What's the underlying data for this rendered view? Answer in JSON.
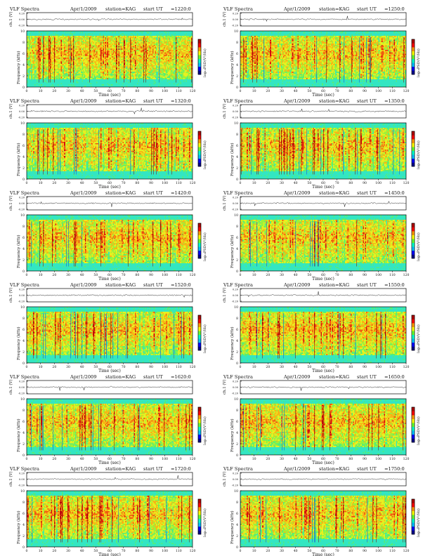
{
  "page": {
    "background": "#ffffff"
  },
  "colorbar_colors": [
    "#00008b",
    "#0000ff",
    "#00bfff",
    "#00ffcc",
    "#66ff33",
    "#ffff00",
    "#ff9900",
    "#ff0000",
    "#b00000"
  ],
  "panel_defaults": {
    "title": "VLF Spectra",
    "date": "Apr/1/2009",
    "station": "station=KAG",
    "start_label": "start  UT",
    "ch_label": "ch.1 (V)",
    "ch_ticks": [
      "0.20",
      "0.00",
      "-0.20"
    ],
    "ch_ylim": [
      -0.2,
      0.2
    ],
    "freq_label": "Frequency  (kHz)",
    "freq_ticks": [
      0,
      2,
      4,
      6,
      8,
      10
    ],
    "freq_ylim": [
      0,
      10
    ],
    "time_label": "Time  (sec)",
    "time_ticks": [
      0,
      10,
      20,
      30,
      40,
      50,
      60,
      70,
      80,
      90,
      100,
      110,
      120
    ],
    "time_xlim": [
      0,
      120
    ],
    "colorbar_label": "log₁₀PSD(V²/Hz)"
  },
  "chart_data": [
    {
      "type": "heatmap",
      "title": "VLF Spectra",
      "date": "Apr/1/2009",
      "station": "station=KAG",
      "start_time": "=1220:0",
      "xlabel": "Time  (sec)",
      "ylabel": "Frequency  (kHz)",
      "xlim": [
        0,
        120
      ],
      "ylim": [
        0,
        10
      ]
    },
    {
      "type": "heatmap",
      "title": "VLF Spectra",
      "date": "Apr/1/2009",
      "station": "station=KAG",
      "start_time": "=1250:0",
      "xlabel": "Time  (sec)",
      "ylabel": "Frequency  (kHz)",
      "xlim": [
        0,
        120
      ],
      "ylim": [
        0,
        10
      ]
    },
    {
      "type": "heatmap",
      "title": "VLF Spectra",
      "date": "Apr/1/2009",
      "station": "station=KAG",
      "start_time": "=1320:0",
      "xlabel": "Time  (sec)",
      "ylabel": "Frequency  (kHz)",
      "xlim": [
        0,
        120
      ],
      "ylim": [
        0,
        10
      ]
    },
    {
      "type": "heatmap",
      "title": "VLF Spectra",
      "date": "Apr/1/2009",
      "station": "station=KAG",
      "start_time": "=1350:0",
      "xlabel": "Time  (sec)",
      "ylabel": "Frequency  (kHz)",
      "xlim": [
        0,
        120
      ],
      "ylim": [
        0,
        10
      ]
    },
    {
      "type": "heatmap",
      "title": "VLF Spectra",
      "date": "Apr/1/2009",
      "station": "station=KAG",
      "start_time": "=1420:0",
      "xlabel": "Time  (sec)",
      "ylabel": "Frequency  (kHz)",
      "xlim": [
        0,
        120
      ],
      "ylim": [
        0,
        10
      ]
    },
    {
      "type": "heatmap",
      "title": "VLF Spectra",
      "date": "Apr/1/2009",
      "station": "station=KAG",
      "start_time": "=1450:0",
      "xlabel": "Time  (sec)",
      "ylabel": "Frequency  (kHz)",
      "xlim": [
        0,
        120
      ],
      "ylim": [
        0,
        10
      ]
    },
    {
      "type": "heatmap",
      "title": "VLF Spectra",
      "date": "Apr/1/2009",
      "station": "station=KAG",
      "start_time": "=1520:0",
      "xlabel": "Time  (sec)",
      "ylabel": "Frequency  (kHz)",
      "xlim": [
        0,
        120
      ],
      "ylim": [
        0,
        10
      ]
    },
    {
      "type": "heatmap",
      "title": "VLF Spectra",
      "date": "Apr/1/2009",
      "station": "station=KAG",
      "start_time": "=1550:0",
      "xlabel": "Time  (sec)",
      "ylabel": "Frequency  (kHz)",
      "xlim": [
        0,
        120
      ],
      "ylim": [
        0,
        10
      ]
    },
    {
      "type": "heatmap",
      "title": "VLF Spectra",
      "date": "Apr/1/2009",
      "station": "station=KAG",
      "start_time": "=1620:0",
      "xlabel": "Time  (sec)",
      "ylabel": "Frequency  (kHz)",
      "xlim": [
        0,
        120
      ],
      "ylim": [
        0,
        10
      ]
    },
    {
      "type": "heatmap",
      "title": "VLF Spectra",
      "date": "Apr/1/2009",
      "station": "station=KAG",
      "start_time": "=1650:0",
      "xlabel": "Time  (sec)",
      "ylabel": "Frequency  (kHz)",
      "xlim": [
        0,
        120
      ],
      "ylim": [
        0,
        10
      ]
    },
    {
      "type": "heatmap",
      "title": "VLF Spectra",
      "date": "Apr/1/2009",
      "station": "station=KAG",
      "start_time": "=1720:0",
      "xlabel": "Time  (sec)",
      "ylabel": "Frequency  (kHz)",
      "xlim": [
        0,
        120
      ],
      "ylim": [
        0,
        10
      ]
    },
    {
      "type": "heatmap",
      "title": "VLF Spectra",
      "date": "Apr/1/2009",
      "station": "station=KAG",
      "start_time": "=1750:0",
      "xlabel": "Time  (sec)",
      "ylabel": "Frequency  (kHz)",
      "xlim": [
        0,
        120
      ],
      "ylim": [
        0,
        10
      ]
    }
  ]
}
